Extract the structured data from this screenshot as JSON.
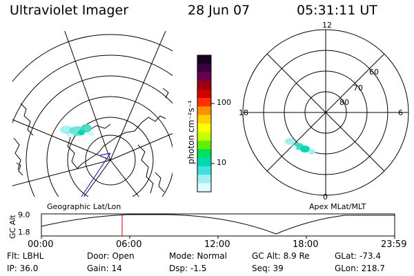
{
  "header": {
    "instrument": "Ultraviolet Imager",
    "date": "28 Jun 07",
    "time": "05:31:11 UT"
  },
  "colorbar": {
    "unit_label": "photon cm⁻²s⁻¹",
    "ticks": [
      "100",
      "10"
    ],
    "colors": [
      "#1a0020",
      "#3a0040",
      "#6a0050",
      "#9a0010",
      "#d00000",
      "#ff3000",
      "#ff9000",
      "#ffd000",
      "#ffff00",
      "#c8ff00",
      "#60f000",
      "#00e060",
      "#00d8b0",
      "#40e0e0",
      "#a0f0f0",
      "#e0ffff"
    ]
  },
  "geo_panel": {
    "label": "Geographic Lat/Lon"
  },
  "apex_panel": {
    "label": "Apex MLat/MLT",
    "mlt_labels": [
      "12",
      "18",
      "6",
      "0"
    ],
    "lat_labels": [
      "60",
      "70",
      "80"
    ]
  },
  "orbit_plot": {
    "ylabel": "GC Alt",
    "yticks": [
      "9.0",
      "1.8"
    ],
    "xticks": [
      "00:00",
      "06:00",
      "12:00",
      "18:00",
      "23:59"
    ],
    "current_time_fraction": 0.2286,
    "marker_color": "#cc0000"
  },
  "info": {
    "filter": "Flt: LBHL",
    "door": "Door: Open",
    "mode": "Mode: Normal",
    "gc_alt": "GC Alt: 8.9 Re",
    "glat": "GLat: -73.4",
    "ip": "IP: 36.0",
    "gain": "Gain: 14",
    "dsp": "Dsp:    -1.5",
    "seq": "Seq: 39",
    "glon": "GLon: 218.7"
  }
}
